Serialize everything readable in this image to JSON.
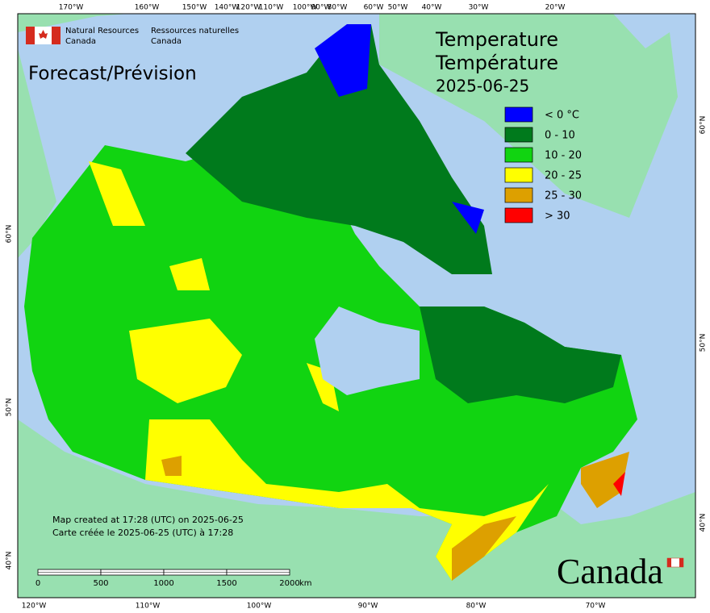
{
  "header": {
    "agency_en": "Natural Resources",
    "agency_en_2": "Canada",
    "agency_fr": "Ressources naturelles",
    "agency_fr_2": "Canada"
  },
  "subtitle": "Forecast/Prévision",
  "title_en": "Temperature",
  "title_fr": "Température",
  "date": "2025-06-25",
  "legend": [
    {
      "label": "< 0 °C",
      "color": "#0000ff"
    },
    {
      "label": "0 - 10",
      "color": "#007a1c"
    },
    {
      "label": "10 - 20",
      "color": "#11d411"
    },
    {
      "label": "20 - 25",
      "color": "#ffff00"
    },
    {
      "label": "25 - 30",
      "color": "#dda000"
    },
    {
      "label": "> 30",
      "color": "#ff0000"
    }
  ],
  "top_labels": [
    "170°W",
    "160°W",
    "150°W",
    "140°W",
    "120°W",
    "110°W",
    "100°W",
    "90°W",
    "80°W",
    "60°W",
    "50°W",
    "40°W",
    "30°W",
    "20°W"
  ],
  "bottom_labels": [
    "120°W",
    "110°W",
    "100°W",
    "90°W",
    "80°W",
    "70°W"
  ],
  "left_labels": [
    "60°N",
    "50°N",
    "40°N"
  ],
  "right_labels": [
    "60°N",
    "50°N",
    "40°N"
  ],
  "footer": {
    "created_en": "Map created at 17:28 (UTC) on 2025-06-25",
    "created_fr": "Carte créée le 2025-06-25 (UTC) à 17:28"
  },
  "scale": {
    "ticks": [
      0,
      500,
      1000,
      1500,
      2000
    ],
    "unit": "km"
  },
  "wordmark": "Canada"
}
